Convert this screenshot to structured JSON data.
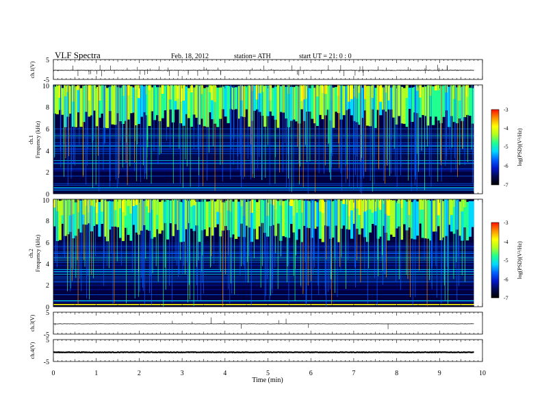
{
  "header": {
    "title": "VLF  Spectra",
    "date": "Feb. 18, 2012",
    "station": "station= ATH",
    "start": "start  UT  =    21: 0   : 0"
  },
  "colors": {
    "colormap": [
      "#000000",
      "#000a50",
      "#0018c8",
      "#0060ff",
      "#00d8ff",
      "#20ff90",
      "#b0ff20",
      "#ffff00",
      "#ff9000",
      "#ff1000",
      "#ffffff"
    ],
    "trace": "#000000",
    "axes": "#000000",
    "spectrogram_band": "#000040",
    "flat_line": "#ffff00"
  },
  "chart_data": [
    {
      "type": "line",
      "ylabel": "ch.1(V)",
      "xlim": [
        0,
        10
      ],
      "ylim": [
        -5,
        5
      ],
      "yticks": [
        "5",
        "-5"
      ],
      "level": -0.4,
      "noise": 0.15,
      "spikes": "many"
    },
    {
      "type": "heatmap",
      "ylabel_channel": "ch.1",
      "ylabel": "Frequency  (kHz)",
      "xlim": [
        0,
        10
      ],
      "ylim": [
        0,
        10
      ],
      "yticks": [
        "0",
        "2",
        "4",
        "6",
        "8",
        "10"
      ],
      "data_end_min": 9.8,
      "colorbar": {
        "label": "log(PSD)(V²/Hz)",
        "range": [
          -7,
          -3
        ],
        "ticks": [
          "-3",
          "-4",
          "-5",
          "-6",
          "-7"
        ]
      }
    },
    {
      "type": "heatmap",
      "ylabel_channel": "ch.2",
      "ylabel": "Frequency  (kHz)",
      "xlim": [
        0,
        10
      ],
      "ylim": [
        0,
        10
      ],
      "yticks": [
        "0",
        "2",
        "4",
        "6",
        "8",
        "10"
      ],
      "data_end_min": 9.8,
      "colorbar": {
        "label": "log(PSD)(V²/Hz)",
        "range": [
          -7,
          -3
        ],
        "ticks": [
          "-3",
          "-4",
          "-5",
          "-6",
          "-7"
        ]
      }
    },
    {
      "type": "line",
      "ylabel": "ch.3(V)",
      "xlim": [
        0,
        10
      ],
      "ylim": [
        -5,
        5
      ],
      "yticks": [
        "5",
        "-5"
      ],
      "level": -0.3,
      "noise": 0.05,
      "spikes": "few"
    },
    {
      "type": "line",
      "ylabel": "ch.4(V)",
      "xlim": [
        0,
        10
      ],
      "ylim": [
        -5,
        5
      ],
      "yticks": [
        "5",
        "-5"
      ],
      "level": -0.8,
      "noise": 0.12,
      "spikes": "none"
    }
  ],
  "x_axis": {
    "label": "Time  (min)",
    "ticks": [
      "0",
      "1",
      "2",
      "3",
      "4",
      "5",
      "6",
      "7",
      "8",
      "9",
      "10"
    ]
  }
}
